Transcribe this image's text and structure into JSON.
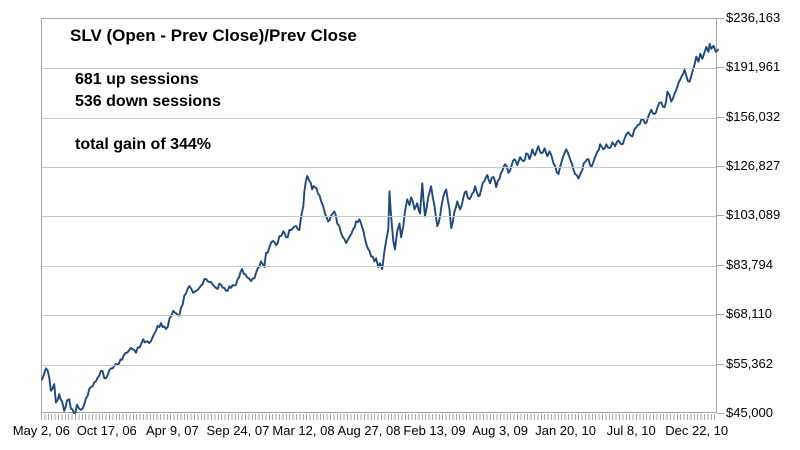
{
  "annotations": {
    "title": "SLV (Open - Prev Close)/Prev Close",
    "up_sessions": "681 up sessions",
    "down_sessions": "536 down sessions",
    "total_gain": "total gain of 344%"
  },
  "chart_data": {
    "type": "line",
    "title": "SLV (Open - Prev Close)/Prev Close",
    "stats": {
      "up_sessions": 681,
      "down_sessions": 536,
      "total_gain_pct": 344
    },
    "y_axis": {
      "side": "right",
      "scale": "log",
      "min": 45000,
      "max": 236163,
      "tick_values": [
        236163,
        191961,
        156032,
        126827,
        103089,
        83794,
        68110,
        55362,
        45000
      ],
      "tick_labels": [
        "$236,163",
        "$191,961",
        "$156,032",
        "$126,827",
        "$103,089",
        "$83,794",
        "$68,110",
        "$55,362",
        "$45,000"
      ]
    },
    "x_axis": {
      "total_sessions": 1217,
      "label_interval_sessions": 118,
      "tick_labels": [
        "May 2, 06",
        "Oct 17, 06",
        "Apr 9, 07",
        "Sep 24, 07",
        "Mar 12, 08",
        "Aug 27, 08",
        "Feb 13, 09",
        "Aug 3, 09",
        "Jan 20, 10",
        "Jul 8, 10",
        "Dec 22, 10"
      ]
    },
    "grid": "horizontal-only",
    "legend": "none",
    "colors": {
      "line": "#1f497d",
      "gridline": "#c9c9c9",
      "axis": "#a6a6a6",
      "text": "#000000"
    },
    "series": [
      {
        "name": "SLV",
        "x_unit": "session_index",
        "y_unit": "dollars",
        "points": [
          [
            0,
            52000
          ],
          [
            7,
            54500
          ],
          [
            13,
            52500
          ],
          [
            16,
            49600
          ],
          [
            22,
            51000
          ],
          [
            25,
            47200
          ],
          [
            31,
            48900
          ],
          [
            36,
            47500
          ],
          [
            40,
            45600
          ],
          [
            45,
            47600
          ],
          [
            49,
            47900
          ],
          [
            52,
            46000
          ],
          [
            58,
            45000
          ],
          [
            63,
            46800
          ],
          [
            70,
            45800
          ],
          [
            79,
            48000
          ],
          [
            85,
            50000
          ],
          [
            94,
            51400
          ],
          [
            106,
            53900
          ],
          [
            115,
            52300
          ],
          [
            124,
            54500
          ],
          [
            133,
            55500
          ],
          [
            144,
            56500
          ],
          [
            160,
            59400
          ],
          [
            169,
            58200
          ],
          [
            182,
            61600
          ],
          [
            193,
            60600
          ],
          [
            205,
            63800
          ],
          [
            214,
            65900
          ],
          [
            223,
            64300
          ],
          [
            236,
            69400
          ],
          [
            247,
            68000
          ],
          [
            256,
            73900
          ],
          [
            265,
            77000
          ],
          [
            272,
            74800
          ],
          [
            283,
            76400
          ],
          [
            295,
            79300
          ],
          [
            304,
            78300
          ],
          [
            313,
            76400
          ],
          [
            322,
            77400
          ],
          [
            331,
            75500
          ],
          [
            340,
            76400
          ],
          [
            349,
            77400
          ],
          [
            360,
            82700
          ],
          [
            369,
            79900
          ],
          [
            376,
            78600
          ],
          [
            385,
            81300
          ],
          [
            394,
            85400
          ],
          [
            400,
            83400
          ],
          [
            403,
            88400
          ],
          [
            409,
            90600
          ],
          [
            416,
            93000
          ],
          [
            421,
            91400
          ],
          [
            427,
            94900
          ],
          [
            434,
            96900
          ],
          [
            439,
            94500
          ],
          [
            448,
            97400
          ],
          [
            457,
            99000
          ],
          [
            463,
            97400
          ],
          [
            466,
            103100
          ],
          [
            470,
            107600
          ],
          [
            472,
            114600
          ],
          [
            477,
            122200
          ],
          [
            481,
            119700
          ],
          [
            486,
            115500
          ],
          [
            491,
            116600
          ],
          [
            502,
            109900
          ],
          [
            509,
            104400
          ],
          [
            515,
            101000
          ],
          [
            520,
            103500
          ],
          [
            526,
            105300
          ],
          [
            531,
            100100
          ],
          [
            538,
            96100
          ],
          [
            544,
            93800
          ],
          [
            547,
            92200
          ],
          [
            553,
            94500
          ],
          [
            560,
            97800
          ],
          [
            565,
            101000
          ],
          [
            571,
            101900
          ],
          [
            576,
            98600
          ],
          [
            581,
            93800
          ],
          [
            587,
            89800
          ],
          [
            592,
            87200
          ],
          [
            598,
            85400
          ],
          [
            601,
            86500
          ],
          [
            605,
            83400
          ],
          [
            608,
            84700
          ],
          [
            612,
            82700
          ],
          [
            616,
            89000
          ],
          [
            619,
            93000
          ],
          [
            623,
            97800
          ],
          [
            625,
            114600
          ],
          [
            628,
            103100
          ],
          [
            632,
            93000
          ],
          [
            635,
            89800
          ],
          [
            639,
            96900
          ],
          [
            643,
            100100
          ],
          [
            646,
            94500
          ],
          [
            650,
            99000
          ],
          [
            653,
            105300
          ],
          [
            657,
            110800
          ],
          [
            661,
            108100
          ],
          [
            664,
            111700
          ],
          [
            670,
            106200
          ],
          [
            675,
            109000
          ],
          [
            680,
            104400
          ],
          [
            684,
            118500
          ],
          [
            689,
            103100
          ],
          [
            695,
            112200
          ],
          [
            700,
            117000
          ],
          [
            706,
            107600
          ],
          [
            711,
            99000
          ],
          [
            716,
            103100
          ],
          [
            722,
            112200
          ],
          [
            727,
            115500
          ],
          [
            733,
            106200
          ],
          [
            736,
            98200
          ],
          [
            742,
            105300
          ],
          [
            747,
            109900
          ],
          [
            752,
            106200
          ],
          [
            758,
            111700
          ],
          [
            763,
            114600
          ],
          [
            769,
            110800
          ],
          [
            774,
            113600
          ],
          [
            779,
            117000
          ],
          [
            785,
            112200
          ],
          [
            790,
            115500
          ],
          [
            796,
            119700
          ],
          [
            801,
            122700
          ],
          [
            806,
            118500
          ],
          [
            812,
            121700
          ],
          [
            817,
            116600
          ],
          [
            823,
            120700
          ],
          [
            828,
            124800
          ],
          [
            833,
            128400
          ],
          [
            839,
            123800
          ],
          [
            844,
            126800
          ],
          [
            850,
            131100
          ],
          [
            855,
            127900
          ],
          [
            860,
            132200
          ],
          [
            866,
            130000
          ],
          [
            871,
            134400
          ],
          [
            877,
            131100
          ],
          [
            882,
            136700
          ],
          [
            887,
            133300
          ],
          [
            893,
            138400
          ],
          [
            898,
            134400
          ],
          [
            904,
            137300
          ],
          [
            909,
            132800
          ],
          [
            913,
            135500
          ],
          [
            920,
            129000
          ],
          [
            929,
            123200
          ],
          [
            936,
            131100
          ],
          [
            943,
            136700
          ],
          [
            950,
            131100
          ],
          [
            956,
            125400
          ],
          [
            965,
            120900
          ],
          [
            972,
            125400
          ],
          [
            977,
            129500
          ],
          [
            983,
            131100
          ],
          [
            988,
            126800
          ],
          [
            994,
            131600
          ],
          [
            999,
            135500
          ],
          [
            1004,
            139600
          ],
          [
            1010,
            136700
          ],
          [
            1015,
            139600
          ],
          [
            1021,
            137300
          ],
          [
            1026,
            140700
          ],
          [
            1031,
            138400
          ],
          [
            1037,
            141900
          ],
          [
            1042,
            139600
          ],
          [
            1048,
            143100
          ],
          [
            1055,
            146800
          ],
          [
            1062,
            144300
          ],
          [
            1069,
            149900
          ],
          [
            1078,
            154900
          ],
          [
            1085,
            152400
          ],
          [
            1093,
            158900
          ],
          [
            1096,
            161400
          ],
          [
            1102,
            158500
          ],
          [
            1107,
            162800
          ],
          [
            1114,
            166400
          ],
          [
            1120,
            163100
          ],
          [
            1125,
            174100
          ],
          [
            1132,
            167000
          ],
          [
            1138,
            172700
          ],
          [
            1143,
            177800
          ],
          [
            1148,
            183000
          ],
          [
            1156,
            190800
          ],
          [
            1159,
            186100
          ],
          [
            1165,
            181500
          ],
          [
            1170,
            189200
          ],
          [
            1174,
            195500
          ],
          [
            1177,
            201700
          ],
          [
            1181,
            197400
          ],
          [
            1184,
            204100
          ],
          [
            1188,
            199900
          ],
          [
            1192,
            205800
          ],
          [
            1195,
            210100
          ],
          [
            1199,
            205800
          ],
          [
            1201,
            212800
          ],
          [
            1204,
            208400
          ],
          [
            1208,
            211000
          ],
          [
            1212,
            205800
          ],
          [
            1216,
            207500
          ]
        ]
      }
    ],
    "render_hints": {
      "noise_pct": 1.1,
      "noise_step_sessions": 3
    }
  }
}
